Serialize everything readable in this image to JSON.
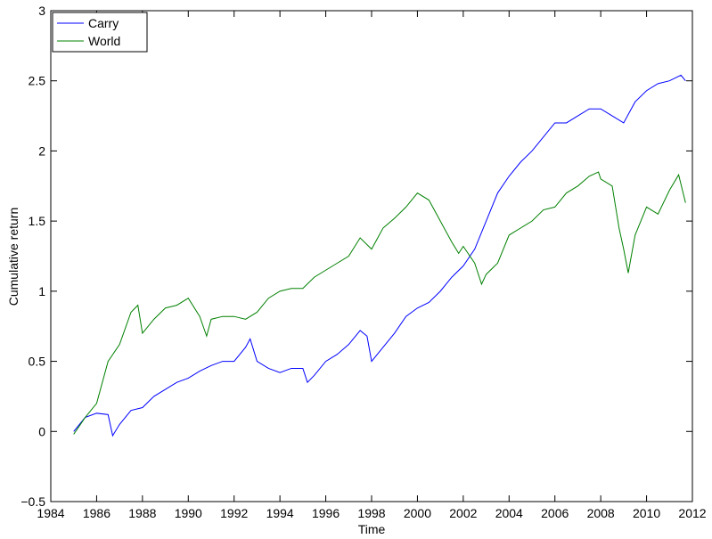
{
  "chart_data": {
    "type": "line",
    "xlabel": "Time",
    "ylabel": "Cumulative return",
    "xlim": [
      1984,
      2012
    ],
    "ylim": [
      -0.5,
      3
    ],
    "xticks": [
      1984,
      1986,
      1988,
      1990,
      1992,
      1994,
      1996,
      1998,
      2000,
      2002,
      2004,
      2006,
      2008,
      2010,
      2012
    ],
    "yticks": [
      {
        "value": -0.5,
        "label": "−0.5"
      },
      0,
      0.5,
      1,
      1.5,
      2,
      2.5,
      3
    ],
    "legend": "upper left",
    "grid": false,
    "series": [
      {
        "name": "Carry",
        "color": "#0000ff",
        "x": [
          1985.0,
          1985.5,
          1986.0,
          1986.5,
          1986.7,
          1987.0,
          1987.5,
          1988.0,
          1988.5,
          1989.0,
          1989.5,
          1990.0,
          1990.5,
          1991.0,
          1991.5,
          1992.0,
          1992.5,
          1992.7,
          1993.0,
          1993.5,
          1994.0,
          1994.5,
          1995.0,
          1995.2,
          1995.5,
          1996.0,
          1996.5,
          1997.0,
          1997.5,
          1997.8,
          1998.0,
          1998.5,
          1999.0,
          1999.5,
          2000.0,
          2000.5,
          2001.0,
          2001.5,
          2002.0,
          2002.5,
          2003.0,
          2003.5,
          2004.0,
          2004.5,
          2005.0,
          2005.5,
          2006.0,
          2006.5,
          2007.0,
          2007.5,
          2008.0,
          2008.5,
          2009.0,
          2009.5,
          2010.0,
          2010.5,
          2011.0,
          2011.5,
          2011.7
        ],
        "values": [
          0.0,
          0.1,
          0.13,
          0.12,
          -0.03,
          0.05,
          0.15,
          0.17,
          0.25,
          0.3,
          0.35,
          0.38,
          0.43,
          0.47,
          0.5,
          0.5,
          0.6,
          0.66,
          0.5,
          0.45,
          0.42,
          0.45,
          0.45,
          0.35,
          0.4,
          0.5,
          0.55,
          0.62,
          0.72,
          0.68,
          0.5,
          0.6,
          0.7,
          0.82,
          0.88,
          0.92,
          1.0,
          1.1,
          1.18,
          1.3,
          1.5,
          1.7,
          1.82,
          1.92,
          2.0,
          2.1,
          2.2,
          2.2,
          2.25,
          2.3,
          2.3,
          2.25,
          2.2,
          2.35,
          2.43,
          2.48,
          2.5,
          2.54,
          2.5
        ]
      },
      {
        "name": "World",
        "color": "#008000",
        "x": [
          1985.0,
          1985.5,
          1986.0,
          1986.5,
          1987.0,
          1987.5,
          1987.8,
          1988.0,
          1988.5,
          1989.0,
          1989.5,
          1990.0,
          1990.5,
          1990.8,
          1991.0,
          1991.5,
          1992.0,
          1992.5,
          1993.0,
          1993.5,
          1994.0,
          1994.5,
          1995.0,
          1995.5,
          1996.0,
          1996.5,
          1997.0,
          1997.5,
          1998.0,
          1998.5,
          1999.0,
          1999.5,
          2000.0,
          2000.5,
          2001.0,
          2001.5,
          2001.8,
          2002.0,
          2002.5,
          2002.8,
          2003.0,
          2003.5,
          2004.0,
          2004.5,
          2005.0,
          2005.5,
          2006.0,
          2006.5,
          2007.0,
          2007.5,
          2007.9,
          2008.0,
          2008.5,
          2008.8,
          2009.0,
          2009.2,
          2009.5,
          2010.0,
          2010.5,
          2011.0,
          2011.4,
          2011.7
        ],
        "values": [
          -0.02,
          0.1,
          0.2,
          0.5,
          0.62,
          0.85,
          0.9,
          0.7,
          0.8,
          0.88,
          0.9,
          0.95,
          0.82,
          0.68,
          0.8,
          0.82,
          0.82,
          0.8,
          0.85,
          0.95,
          1.0,
          1.02,
          1.02,
          1.1,
          1.15,
          1.2,
          1.25,
          1.38,
          1.3,
          1.45,
          1.52,
          1.6,
          1.7,
          1.65,
          1.5,
          1.35,
          1.27,
          1.32,
          1.2,
          1.05,
          1.12,
          1.2,
          1.4,
          1.45,
          1.5,
          1.58,
          1.6,
          1.7,
          1.75,
          1.82,
          1.85,
          1.8,
          1.75,
          1.45,
          1.3,
          1.13,
          1.4,
          1.6,
          1.55,
          1.72,
          1.83,
          1.63
        ]
      }
    ]
  }
}
